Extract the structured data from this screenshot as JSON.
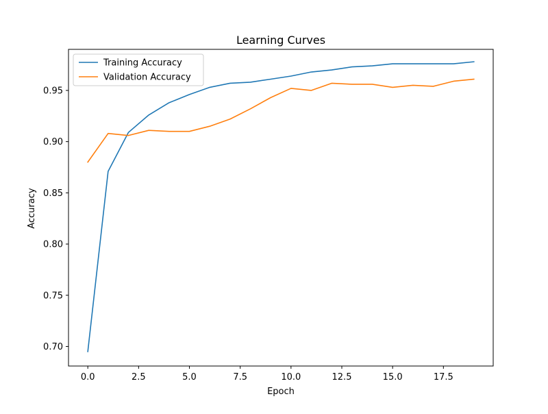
{
  "chart_data": {
    "type": "line",
    "title": "Learning Curves",
    "xlabel": "Epoch",
    "ylabel": "Accuracy",
    "xlim": [
      -0.95,
      19.95
    ],
    "ylim": [
      0.6809,
      0.9901
    ],
    "x_ticks": [
      0,
      2.5,
      5,
      7.5,
      10,
      12.5,
      15,
      17.5
    ],
    "x_tick_labels": [
      "0.0",
      "2.5",
      "5.0",
      "7.5",
      "10.0",
      "12.5",
      "15.0",
      "17.5"
    ],
    "y_ticks": [
      0.7,
      0.75,
      0.8,
      0.85,
      0.9,
      0.95
    ],
    "y_tick_labels": [
      "0.70",
      "0.75",
      "0.80",
      "0.85",
      "0.90",
      "0.95"
    ],
    "grid": false,
    "legend_position": "upper-left",
    "x": [
      0,
      1,
      2,
      3,
      4,
      5,
      6,
      7,
      8,
      9,
      10,
      11,
      12,
      13,
      14,
      15,
      16,
      17,
      18,
      19
    ],
    "series": [
      {
        "name": "Training Accuracy",
        "color": "#1f77b4",
        "values": [
          0.695,
          0.871,
          0.909,
          0.926,
          0.938,
          0.946,
          0.953,
          0.957,
          0.958,
          0.961,
          0.964,
          0.968,
          0.97,
          0.973,
          0.974,
          0.976,
          0.976,
          0.976,
          0.976,
          0.978
        ]
      },
      {
        "name": "Validation Accuracy",
        "color": "#ff7f0e",
        "values": [
          0.88,
          0.908,
          0.906,
          0.911,
          0.91,
          0.91,
          0.915,
          0.922,
          0.932,
          0.943,
          0.952,
          0.95,
          0.957,
          0.956,
          0.956,
          0.953,
          0.955,
          0.954,
          0.959,
          0.961
        ]
      }
    ]
  }
}
